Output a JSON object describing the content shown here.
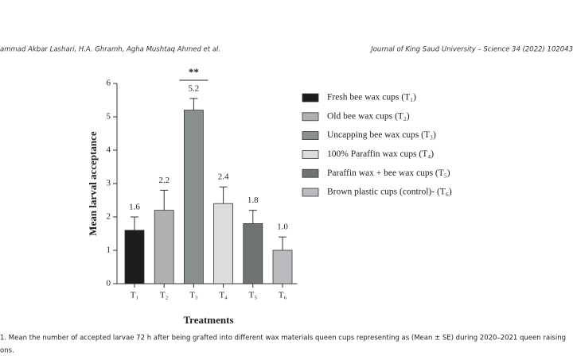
{
  "header": {
    "authors": "ammad Akbar Lashari, H.A. Ghramh, Agha Mushtaq Ahmed et al.",
    "journal": "Journal of King Saud University – Science 34 (2022) 102043"
  },
  "chart_data": {
    "type": "bar",
    "xlabel": "Treatments",
    "ylabel": "Mean larval acceptance",
    "categories": [
      "T₁",
      "T₂",
      "T₃",
      "T₄",
      "T₅",
      "T₆"
    ],
    "values": [
      1.6,
      2.2,
      5.2,
      2.4,
      1.8,
      1.0
    ],
    "value_labels": [
      "1.6",
      "2.2",
      "5.2",
      "2.4",
      "1.8",
      "1.0"
    ],
    "errors": [
      0.4,
      0.6,
      0.35,
      0.5,
      0.4,
      0.4
    ],
    "colors": [
      "#1c1c1c",
      "#b0b0b0",
      "#8a8f8f",
      "#dcdcdc",
      "#6f7373",
      "#b9bbbe"
    ],
    "legend": [
      "Fresh bee wax cups (T₁)",
      "Old bee wax cups (T₂)",
      "Uncapping bee wax cups (T₃)",
      "100% Paraffin wax cups (T₄)",
      "Paraffin wax + bee wax cups (T₅)",
      "Brown plastic cups (control)- (T₆)"
    ],
    "annotation": "**",
    "ylim": [
      0,
      6
    ],
    "yticks": [
      0,
      1,
      2,
      3,
      4,
      5,
      6
    ]
  },
  "caption": {
    "lines": [
      "1. Mean the number of accepted larvae 72 h after being grafted into different wax materials queen cups representing as (Mean ± SE) during 2020–2021 queen raising",
      "ons."
    ]
  }
}
